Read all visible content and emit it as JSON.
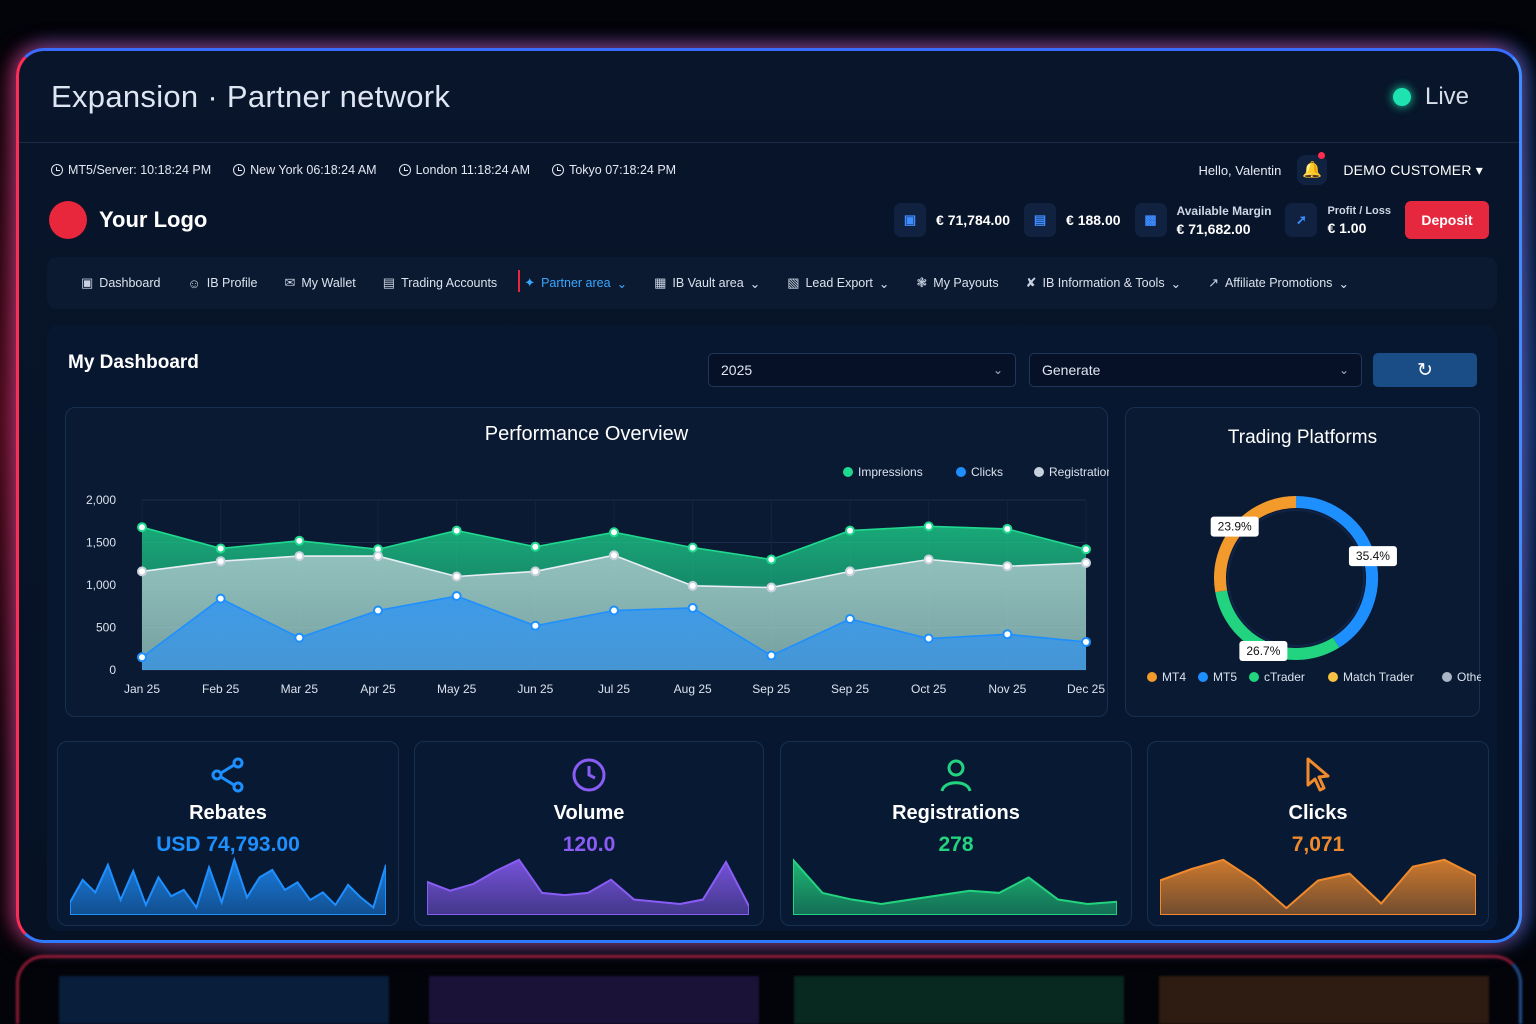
{
  "window": {
    "title": "Expansion · Partner network",
    "status": "Live"
  },
  "clocks": [
    {
      "label": "MT5/Server: 10:18:24 PM"
    },
    {
      "label": "New York 06:18:24 AM"
    },
    {
      "label": "London 11:18:24 AM"
    },
    {
      "label": "Tokyo 07:18:24 PM"
    }
  ],
  "user": {
    "greeting": "Hello, Valentin",
    "account": "DEMO CUSTOMER"
  },
  "logo": {
    "text": "Your Logo"
  },
  "balances": {
    "balance": "€ 71,784.00",
    "credit": "€ 188.00",
    "margin_label": "Available Margin",
    "margin_value": "€ 71,682.00",
    "pl_label": "Profit / Loss",
    "pl_value": "€ 1.00",
    "deposit": "Deposit"
  },
  "nav": [
    {
      "label": "Dashboard",
      "icon": "dashboard-icon"
    },
    {
      "label": "IB Profile",
      "icon": "user-icon"
    },
    {
      "label": "My Wallet",
      "icon": "wallet-icon"
    },
    {
      "label": "Trading Accounts",
      "icon": "chart-icon"
    },
    {
      "label": "Partner area",
      "icon": "network-icon",
      "active": true,
      "dropdown": true
    },
    {
      "label": "IB Vault area",
      "icon": "vault-icon",
      "dropdown": true
    },
    {
      "label": "Lead Export",
      "icon": "export-icon",
      "dropdown": true
    },
    {
      "label": "My Payouts",
      "icon": "payout-icon"
    },
    {
      "label": "IB Information & Tools",
      "icon": "tools-icon",
      "dropdown": true
    },
    {
      "label": "Affiliate Promotions",
      "icon": "trend-icon",
      "dropdown": true
    }
  ],
  "dashboard": {
    "title": "My Dashboard",
    "year": "2025",
    "mode": "Generate"
  },
  "chart_data": [
    {
      "type": "area",
      "title": "Performance Overview",
      "categories": [
        "Jan 25",
        "Feb 25",
        "Mar 25",
        "Apr 25",
        "May 25",
        "Jun 25",
        "Jul 25",
        "Aug 25",
        "Sep 25",
        "Sep 25",
        "Oct 25",
        "Nov 25",
        "Dec 25"
      ],
      "ylim": [
        0,
        2000
      ],
      "yticks": [
        "0",
        "500",
        "1,000",
        "1,500",
        "2,000"
      ],
      "legend": "top-right",
      "grid": true,
      "series": [
        {
          "name": "Impressions",
          "color": "#1ed98f",
          "values": [
            1680,
            1430,
            1520,
            1420,
            1640,
            1450,
            1620,
            1440,
            1300,
            1640,
            1690,
            1660,
            1420
          ]
        },
        {
          "name": "Clicks",
          "color": "#1e8fff",
          "values": [
            150,
            840,
            380,
            700,
            870,
            520,
            700,
            730,
            170,
            600,
            370,
            420,
            330
          ]
        },
        {
          "name": "Registrations",
          "color": "#c7d1dd",
          "values": [
            1160,
            1280,
            1340,
            1340,
            1100,
            1160,
            1350,
            990,
            970,
            1160,
            1300,
            1220,
            1260
          ]
        }
      ]
    },
    {
      "type": "pie",
      "title": "Trading Platforms",
      "categories": [
        "MT4",
        "MT5",
        "cTrader",
        "Match Trader",
        "Other"
      ],
      "colors": [
        "#f39a2c",
        "#1e8fff",
        "#22d37f",
        "#f6c244",
        "#aab6c6"
      ],
      "values": [
        23.9,
        35.4,
        26.7,
        0,
        0
      ],
      "labels": [
        "23.9%",
        "35.4%",
        "26.7%"
      ],
      "legend": "bottom"
    }
  ],
  "kpis": [
    {
      "title": "Rebates",
      "value": "USD 74,793.00",
      "color": "#1e8fff",
      "icon": "share-icon",
      "spark": [
        10,
        28,
        18,
        40,
        12,
        35,
        8,
        30,
        15,
        20,
        6,
        38,
        10,
        44,
        14,
        30,
        36,
        20,
        26,
        12,
        18,
        8,
        24,
        14,
        6,
        40
      ]
    },
    {
      "title": "Volume",
      "value": "120.0",
      "color": "#8a5cf6",
      "icon": "clock-icon",
      "spark": [
        30,
        22,
        28,
        40,
        50,
        20,
        18,
        20,
        32,
        14,
        12,
        10,
        14,
        48,
        8
      ]
    },
    {
      "title": "Registrations",
      "value": "278",
      "color": "#22d37f",
      "icon": "user-icon",
      "spark": [
        50,
        20,
        14,
        10,
        14,
        18,
        22,
        20,
        34,
        14,
        10,
        12
      ]
    },
    {
      "title": "Clicks",
      "value": "7,071",
      "color": "#f08a2c",
      "icon": "cursor-icon",
      "spark": [
        30,
        40,
        48,
        30,
        6,
        30,
        36,
        10,
        42,
        48,
        34
      ]
    }
  ]
}
